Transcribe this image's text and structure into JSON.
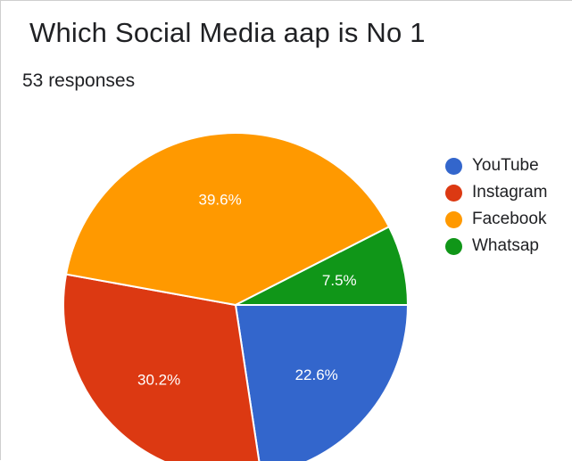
{
  "title": "Which Social Media aap is No 1",
  "responses_label": "53 responses",
  "chart_data": {
    "type": "pie",
    "categories": [
      "YouTube",
      "Instagram",
      "Facebook",
      "Whatsap"
    ],
    "values": [
      22.6,
      30.2,
      39.6,
      7.5
    ],
    "labels": [
      "22.6%",
      "30.2%",
      "39.6%",
      "7.5%"
    ],
    "colors": [
      "#3366cc",
      "#dc3912",
      "#ff9900",
      "#109618"
    ],
    "legend_position": "right"
  }
}
